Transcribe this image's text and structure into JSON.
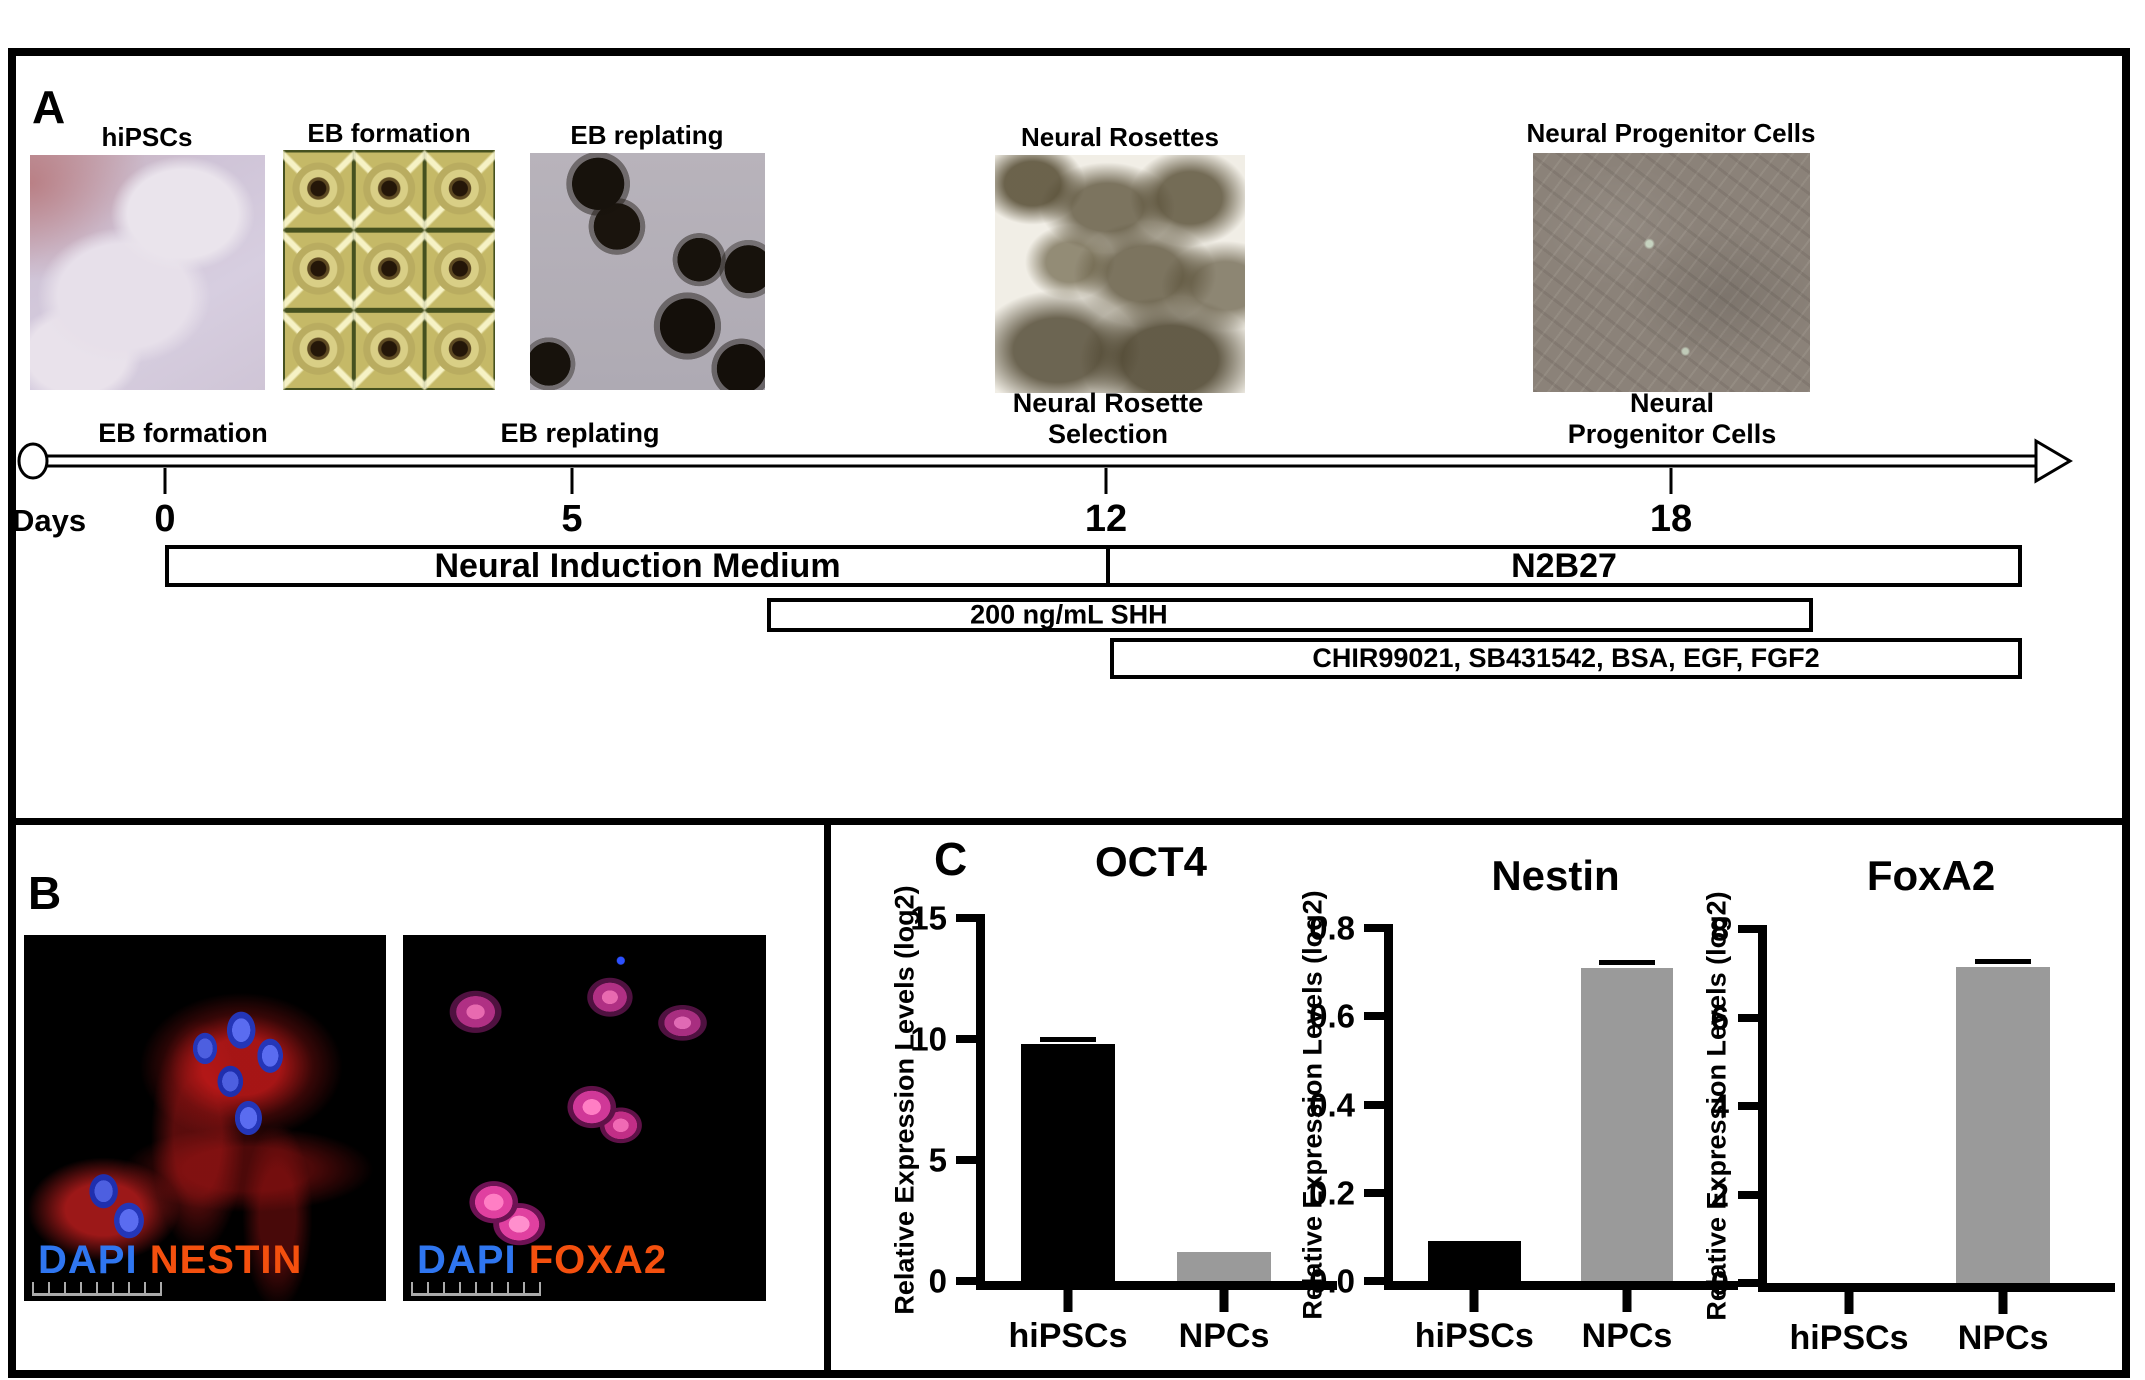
{
  "figure": {
    "panel_a": {
      "label": "A",
      "image_labels": [
        "hiPSCs",
        "EB formation",
        "EB replating",
        "Neural Rosettes",
        "Neural Progenitor Cells"
      ],
      "timeline": {
        "days_label": "Days",
        "stage_labels": [
          "EB formation",
          "EB replating",
          "Neural Rosette\nSelection",
          "Neural\nProgenitor Cells"
        ],
        "day_numbers": [
          "0",
          "5",
          "12",
          "18"
        ]
      },
      "media_bars": {
        "nim": "Neural Induction Medium",
        "n2b27": "N2B27",
        "shh": "200 ng/mL SHH",
        "chir": "CHIR99021, SB431542, BSA, EGF, FGF2"
      }
    },
    "panel_b": {
      "label": "B",
      "captions": [
        {
          "stain1": "DAPI",
          "stain2": "NESTIN"
        },
        {
          "stain1": "DAPI",
          "stain2": "FOXA2"
        }
      ],
      "colors": {
        "dapi_label": "#2f76f0",
        "marker_label": "#f4500e"
      }
    },
    "panel_c": {
      "label": "C"
    }
  },
  "chart_data": [
    {
      "type": "bar",
      "title": "OCT4",
      "ylabel": "Relative Expression Levels (log2)",
      "xlabel": "",
      "categories": [
        "hiPSCs",
        "NPCs"
      ],
      "values": [
        9.8,
        1.2
      ],
      "errors": [
        0.15,
        0
      ],
      "bar_colors": [
        "#000000",
        "#9a9a9a"
      ],
      "ylim": [
        0,
        15
      ],
      "yticks": [
        "0",
        "5",
        "10",
        "15"
      ],
      "grid": false,
      "legend": "none"
    },
    {
      "type": "bar",
      "title": "Nestin",
      "ylabel": "Relative Expression Levels (log2)",
      "xlabel": "",
      "categories": [
        "hiPSCs",
        "NPCs"
      ],
      "values": [
        0.09,
        0.71
      ],
      "errors": [
        0,
        0.01
      ],
      "bar_colors": [
        "#000000",
        "#9a9a9a"
      ],
      "ylim": [
        0,
        0.8
      ],
      "yticks": [
        "0.0",
        "0.2",
        "0.4",
        "0.6",
        "0.8"
      ],
      "grid": false,
      "legend": "none"
    },
    {
      "type": "bar",
      "title": "FoxA2",
      "ylabel": "Relative Expression Levels (log2)",
      "xlabel": "",
      "categories": [
        "hiPSCs",
        "NPCs"
      ],
      "values": [
        0,
        7.15
      ],
      "errors": [
        0,
        0.1
      ],
      "bar_colors": [
        "#000000",
        "#9a9a9a"
      ],
      "ylim": [
        0,
        8
      ],
      "yticks": [
        "0",
        "2",
        "4",
        "6",
        "8"
      ],
      "grid": false,
      "legend": "none"
    }
  ]
}
